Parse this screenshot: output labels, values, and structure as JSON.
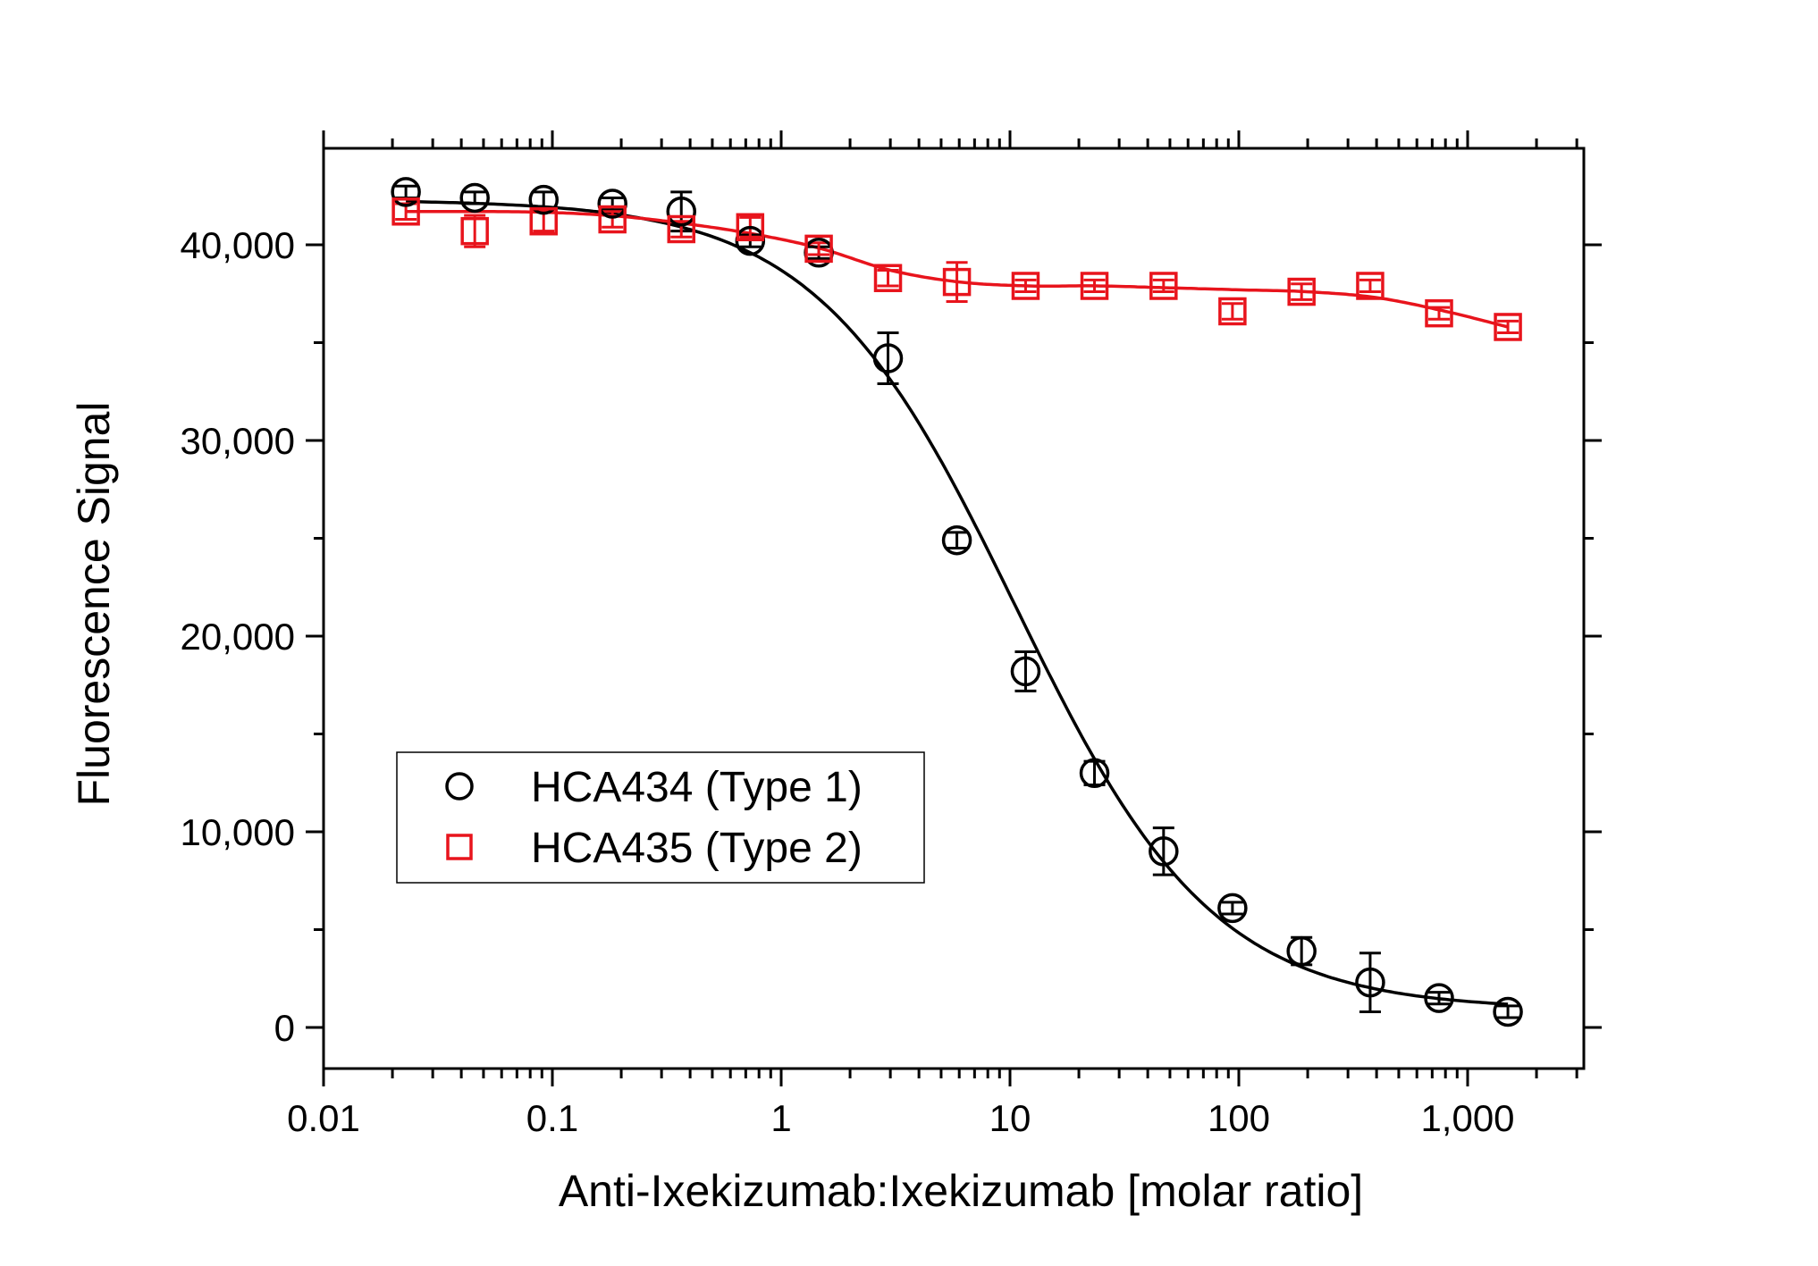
{
  "chart_data": {
    "type": "scatter",
    "title": "",
    "xlabel": "Anti-Ixekizumab:Ixekizumab [molar ratio]",
    "ylabel": "Fluorescence Signal",
    "xscale": "log",
    "xlim": [
      0.01,
      3000
    ],
    "ylim": [
      -2000,
      45000
    ],
    "xticks": [
      {
        "value": 0.01,
        "label": "0.01"
      },
      {
        "value": 0.1,
        "label": "0.1"
      },
      {
        "value": 1,
        "label": "1"
      },
      {
        "value": 10,
        "label": "10"
      },
      {
        "value": 100,
        "label": "100"
      },
      {
        "value": 1000,
        "label": "1,000"
      }
    ],
    "yticks": [
      {
        "value": 0,
        "label": "0"
      },
      {
        "value": 10000,
        "label": "10,000"
      },
      {
        "value": 20000,
        "label": "20,000"
      },
      {
        "value": 30000,
        "label": "30,000"
      },
      {
        "value": 40000,
        "label": "40,000"
      }
    ],
    "grid": false,
    "legend_position": "lower-left",
    "series": [
      {
        "name": "HCA434 (Type 1)",
        "color": "#000000",
        "marker": "circle",
        "x": [
          0.0229,
          0.0458,
          0.0916,
          0.183,
          0.366,
          0.732,
          1.46,
          2.93,
          5.86,
          11.7,
          23.4,
          46.9,
          93.8,
          188,
          375,
          750,
          1500
        ],
        "y": [
          42700,
          42400,
          42300,
          42100,
          41700,
          40200,
          39600,
          34200,
          24900,
          18200,
          13000,
          9000,
          6100,
          3900,
          2300,
          1500,
          800
        ],
        "yerr": [
          300,
          300,
          400,
          300,
          1000,
          300,
          300,
          1300,
          400,
          1000,
          600,
          1200,
          300,
          700,
          1500,
          300,
          300
        ],
        "fit": {
          "model": "4PL",
          "top": 42300,
          "bottom": 900,
          "ec50": 10.5,
          "hill": 1.0
        }
      },
      {
        "name": "HCA435 (Type 2)",
        "color": "#e8141c",
        "marker": "square",
        "x": [
          0.0229,
          0.0458,
          0.0916,
          0.183,
          0.366,
          0.732,
          1.46,
          2.93,
          5.86,
          11.7,
          23.4,
          46.9,
          93.8,
          188,
          375,
          750,
          1500
        ],
        "y": [
          41700,
          40700,
          41200,
          41300,
          40800,
          40900,
          39800,
          38300,
          38100,
          37900,
          37900,
          37900,
          36600,
          37600,
          37900,
          36500,
          35800
        ],
        "yerr": [
          400,
          800,
          500,
          400,
          400,
          500,
          300,
          400,
          1000,
          300,
          300,
          300,
          400,
          400,
          300,
          300,
          300
        ],
        "fit": {
          "model": "smooth",
          "x": [
            0.0229,
            0.05,
            0.1,
            0.2,
            0.4,
            0.8,
            1.5,
            3,
            6,
            12,
            24,
            50,
            100,
            200,
            400,
            800,
            1500
          ],
          "y": [
            41700,
            41700,
            41650,
            41450,
            41050,
            40500,
            39800,
            38700,
            38100,
            37900,
            37900,
            37800,
            37700,
            37600,
            37300,
            36600,
            35800
          ]
        }
      }
    ]
  }
}
